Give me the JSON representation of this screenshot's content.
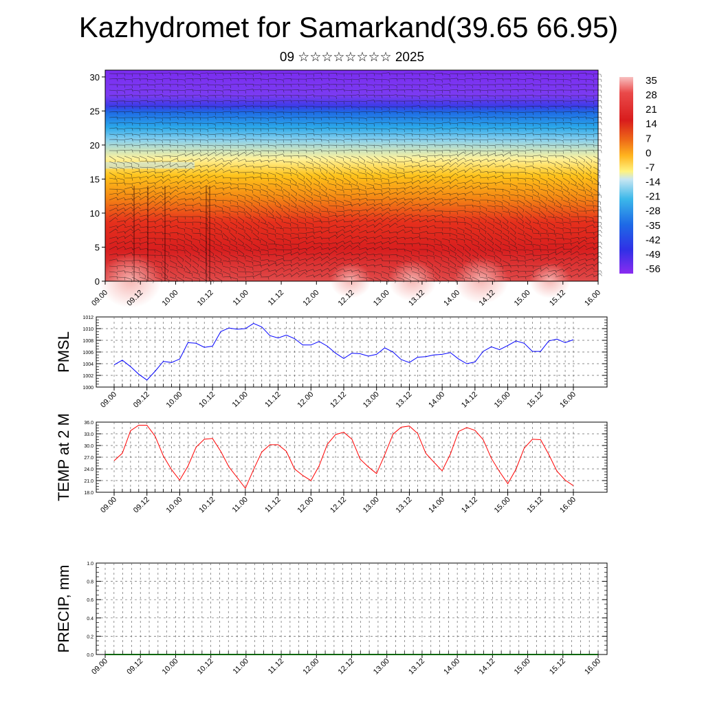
{
  "title": "Kazhydromet for Samarkand(39.65 66.95)",
  "subtitle": "09 ☆☆☆☆☆☆☆☆ 2025",
  "chart_data": [
    {
      "type": "heatmap",
      "ylim": [
        0,
        30
      ],
      "yticks": [
        0,
        5,
        10,
        15,
        20,
        25,
        30
      ],
      "x_labels": [
        "09.00",
        "09.12",
        "10.00",
        "10.12",
        "11.00",
        "11.12",
        "12.00",
        "12.12",
        "13.00",
        "13.12",
        "14.00",
        "14.12",
        "15.00",
        "15.12",
        "16.00"
      ],
      "colorbar_labels": [
        "35",
        "28",
        "21",
        "14",
        "7",
        "0",
        "-7",
        "-14",
        "-21",
        "-28",
        "-35",
        "-42",
        "-49",
        "-56"
      ],
      "overlay": "wind barbs"
    },
    {
      "type": "line",
      "ylabel": "PMSL",
      "ylim": [
        1000,
        1012
      ],
      "yticks": [
        "1000",
        "1002",
        "1004",
        "1006",
        "1008",
        "1010",
        "1012"
      ],
      "x_labels": [
        "09.00",
        "09.12",
        "10.00",
        "10.12",
        "11.00",
        "11.12",
        "12.00",
        "12.12",
        "13.00",
        "13.12",
        "14.00",
        "14.12",
        "15.00",
        "15.12",
        "16.00"
      ],
      "color": "#0000ff",
      "values": [
        1003.8,
        1004.6,
        1003.5,
        1002.2,
        1001.2,
        1002.7,
        1004.4,
        1004.2,
        1004.8,
        1007.6,
        1007.5,
        1006.8,
        1007.0,
        1009.5,
        1010.1,
        1009.9,
        1010.0,
        1010.9,
        1010.3,
        1008.8,
        1008.4,
        1008.9,
        1008.3,
        1007.2,
        1007.2,
        1007.8,
        1007.0,
        1005.8,
        1004.9,
        1005.8,
        1005.7,
        1005.3,
        1005.6,
        1006.7,
        1006.0,
        1004.7,
        1004.2,
        1005.1,
        1005.2,
        1005.5,
        1005.6,
        1005.9,
        1004.8,
        1004.0,
        1004.3,
        1006.1,
        1006.9,
        1006.4,
        1007.1,
        1007.9,
        1007.5,
        1006.1,
        1006.1,
        1007.9,
        1008.2,
        1007.6,
        1008.1
      ]
    },
    {
      "type": "line",
      "ylabel": "TEMP at 2 M",
      "ylim": [
        18,
        36
      ],
      "yticks": [
        "18.0",
        "21.0",
        "24.0",
        "27.0",
        "30.0",
        "33.0",
        "36.0"
      ],
      "x_labels": [
        "09.00",
        "09.12",
        "10.00",
        "10.12",
        "11.00",
        "11.12",
        "12.00",
        "12.12",
        "13.00",
        "13.12",
        "14.00",
        "14.12",
        "15.00",
        "15.12",
        "16.00"
      ],
      "color": "#ff0000",
      "values": [
        26.1,
        28.0,
        33.8,
        35.2,
        35.2,
        32.4,
        27.3,
        23.8,
        21.1,
        24.7,
        29.6,
        31.6,
        31.8,
        28.5,
        24.5,
        21.8,
        19.0,
        23.8,
        28.3,
        30.2,
        30.2,
        28.5,
        24.0,
        22.3,
        21.0,
        24.8,
        30.3,
        32.8,
        33.4,
        31.6,
        26.5,
        24.5,
        22.8,
        27.6,
        32.9,
        34.7,
        35.0,
        33.1,
        28.0,
        25.7,
        23.5,
        27.8,
        33.6,
        34.6,
        33.9,
        31.5,
        26.7,
        23.3,
        20.2,
        23.9,
        29.3,
        31.6,
        31.5,
        27.7,
        23.4,
        21.1,
        19.7
      ]
    },
    {
      "type": "line",
      "ylabel": "PRECIP, mm",
      "ylim": [
        0,
        1
      ],
      "yticks": [
        "0.0",
        "0.2",
        "0.4",
        "0.6",
        "0.8",
        "1.0"
      ],
      "x_labels": [
        "09.00",
        "09.12",
        "10.00",
        "10.12",
        "11.00",
        "11.12",
        "12.00",
        "12.12",
        "13.00",
        "13.12",
        "14.00",
        "14.12",
        "15.00",
        "15.12",
        "16.00"
      ],
      "color": "#006400",
      "values": [
        0,
        0,
        0,
        0,
        0,
        0,
        0,
        0,
        0,
        0,
        0,
        0,
        0,
        0,
        0,
        0,
        0,
        0,
        0,
        0,
        0,
        0,
        0,
        0,
        0,
        0,
        0,
        0,
        0,
        0,
        0,
        0,
        0,
        0,
        0,
        0,
        0,
        0,
        0,
        0,
        0,
        0,
        0,
        0,
        0,
        0,
        0,
        0,
        0,
        0,
        0,
        0,
        0,
        0,
        0,
        0,
        0
      ]
    }
  ]
}
